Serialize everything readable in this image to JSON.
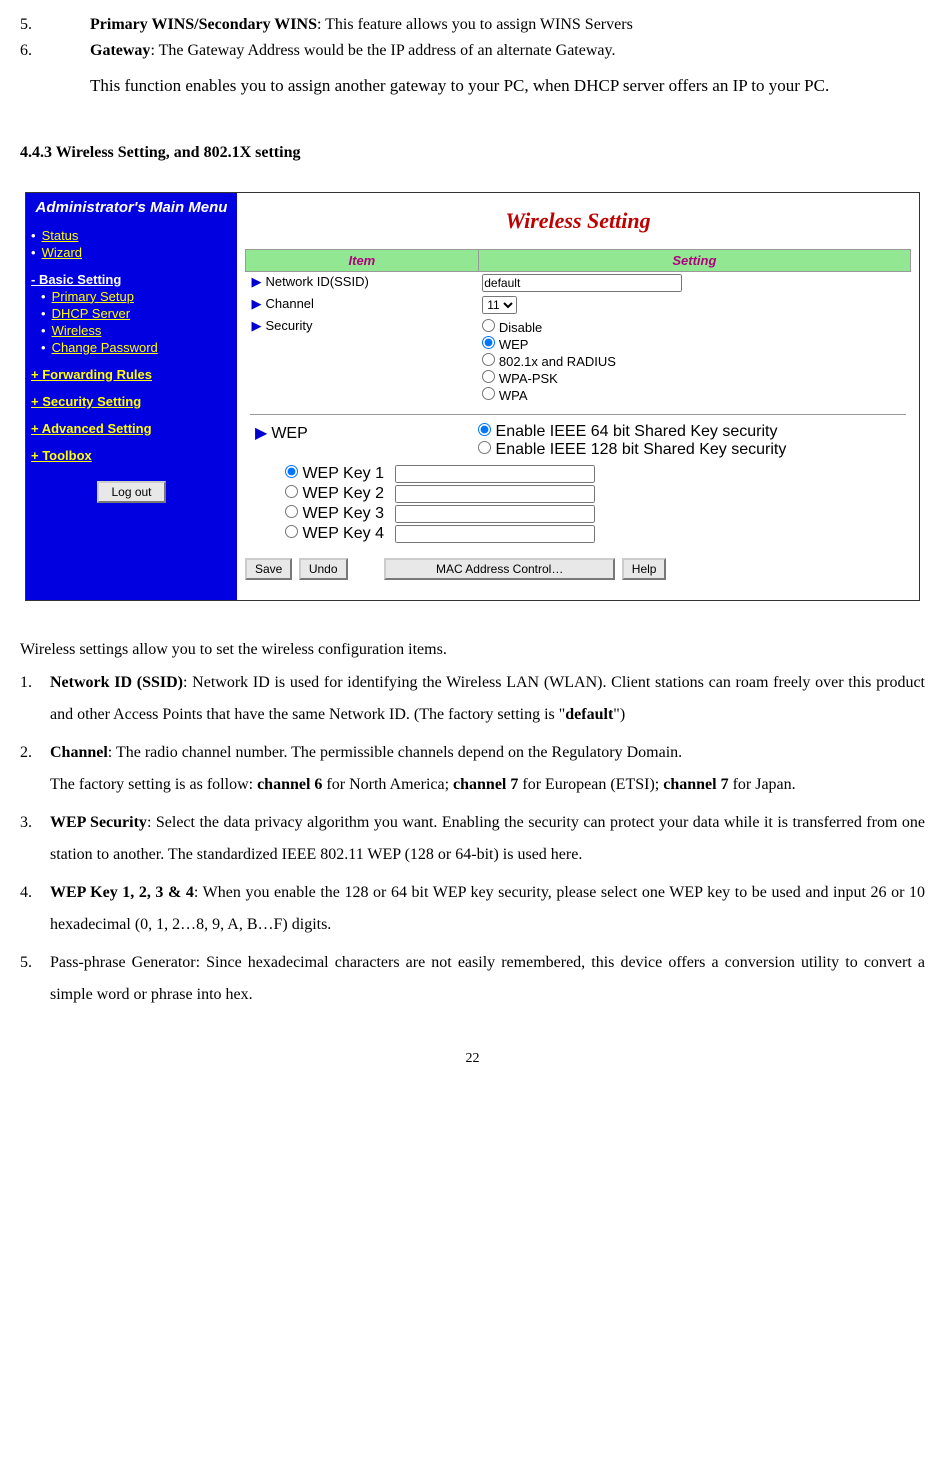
{
  "topList": [
    {
      "num": "5.",
      "bold": "Primary WINS/Secondary WINS",
      "rest": ": This feature allows you to assign WINS Servers"
    },
    {
      "num": "6.",
      "bold": "Gateway",
      "rest": ": The Gateway Address would be the IP address of an alternate Gateway."
    }
  ],
  "gatewayPara": "This function enables you to assign another gateway to your PC, when DHCP server offers an IP to your PC.",
  "sectionHead": "4.4.3 Wireless Setting, and 802.1X setting",
  "sidebar": {
    "title": "Administrator's Main Menu",
    "topItems": [
      "Status",
      "Wizard"
    ],
    "basicLabel": "- Basic Setting",
    "basicItems": [
      "Primary Setup",
      "DHCP Server",
      "Wireless",
      "Change Password"
    ],
    "sections": [
      "+ Forwarding Rules",
      "+ Security Setting",
      "+ Advanced Setting",
      "+ Toolbox"
    ],
    "logout": "Log out"
  },
  "panel": {
    "title": "Wireless Setting",
    "headers": [
      "Item",
      "Setting"
    ],
    "rows": {
      "ssid_label": "Network ID(SSID)",
      "ssid_value": "default",
      "channel_label": "Channel",
      "channel_value": "11",
      "security_label": "Security",
      "security_opts": [
        "Disable",
        "WEP",
        "802.1x and RADIUS",
        "WPA-PSK",
        "WPA"
      ],
      "security_selected": 1
    },
    "wep": {
      "label": "WEP",
      "modes": [
        "Enable IEEE 64 bit Shared Key security",
        "Enable IEEE 128 bit Shared Key security"
      ],
      "mode_selected": 0,
      "keys": [
        "WEP Key 1",
        "WEP Key 2",
        "WEP Key 3",
        "WEP Key 4"
      ],
      "key_selected": 0
    },
    "buttons": {
      "save": "Save",
      "undo": "Undo",
      "mac": "MAC Address Control…",
      "help": "Help"
    }
  },
  "descIntro": "Wireless settings allow you to set the wireless configuration items.",
  "descItems": [
    {
      "num": "1.",
      "html": "<b>Network ID (SSID)</b>: Network ID is used for identifying the Wireless LAN (WLAN). Client stations can roam freely over this product and other Access Points that have the same Network ID. (The factory setting is \"<b>default</b>\")"
    },
    {
      "num": "2.",
      "html": "<b>Channel</b>: The radio channel number. The permissible channels depend on the Regulatory Domain.<br>The factory setting is as follow: <b>channel 6</b> for North America; <b>channel 7</b> for European (ETSI); <b>channel 7</b> for Japan."
    },
    {
      "num": "3.",
      "html": "<b>WEP Security</b>: Select the data privacy algorithm you want. Enabling the security can protect your data while it is transferred from one station to another. The standardized IEEE 802.11 WEP (128 or 64-bit) is used here."
    },
    {
      "num": "4.",
      "html": "<b>WEP Key 1, 2, 3 &amp; 4</b>: When you enable the 128 or 64 bit WEP key security, please select one WEP key to be used and input 26 or 10 hexadecimal (0, 1, 2…8, 9, A, B…F) digits."
    },
    {
      "num": "5.",
      "html": "Pass-phrase Generator: Since hexadecimal characters are not easily remembered, this device offers a conversion utility to convert a simple word or phrase into hex."
    }
  ],
  "pageNum": "22"
}
